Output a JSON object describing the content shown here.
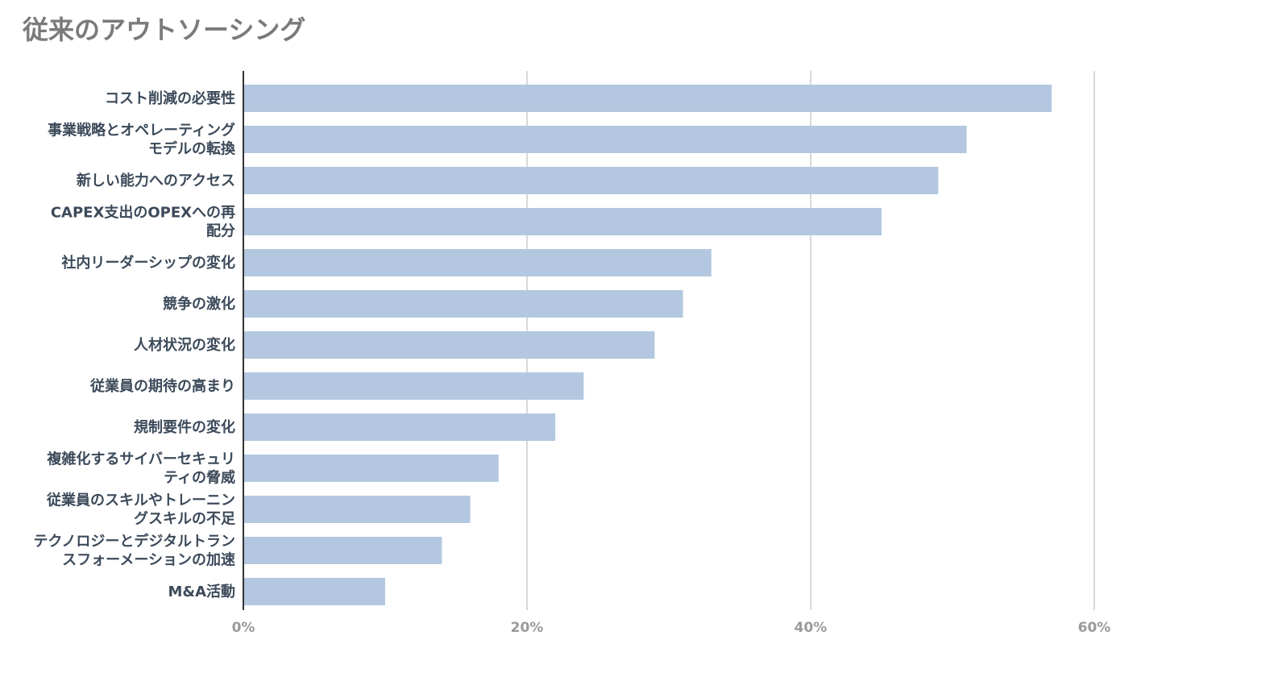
{
  "chart_data": {
    "type": "bar",
    "orientation": "horizontal",
    "title": "従来のアウトソーシング",
    "xlabel": "",
    "ylabel": "",
    "categories": [
      [
        "コスト削減の必要性"
      ],
      [
        "事業戦略とオペレーティング",
        "モデルの転換"
      ],
      [
        "新しい能力へのアクセス"
      ],
      [
        "CAPEX支出のOPEXへの再",
        "配分"
      ],
      [
        "社内リーダーシップの変化"
      ],
      [
        "競争の激化"
      ],
      [
        "人材状況の変化"
      ],
      [
        "従業員の期待の高まり"
      ],
      [
        "規制要件の変化"
      ],
      [
        "複雑化するサイバーセキュリ",
        "ティの脅威"
      ],
      [
        "従業員のスキルやトレーニン",
        "グスキルの不足"
      ],
      [
        "テクノロジーとデジタルトラン",
        "スフォーメーションの加速"
      ],
      [
        "M&A活動"
      ]
    ],
    "values": [
      57,
      51,
      49,
      45,
      33,
      31,
      29,
      24,
      22,
      18,
      16,
      14,
      10
    ],
    "xlim": [
      0,
      72
    ],
    "ticks": [
      0,
      20,
      40,
      60
    ],
    "tick_labels": [
      "0%",
      "20%",
      "40%",
      "60%"
    ],
    "grid": true,
    "legend": "none",
    "colors": {
      "bar": "#b3c8e0",
      "grid": "#cccccc",
      "axis": "#333333",
      "title": "#7a7a7a",
      "category_text": "#3c4a5a",
      "tick_text": "#9a9a9a"
    }
  }
}
